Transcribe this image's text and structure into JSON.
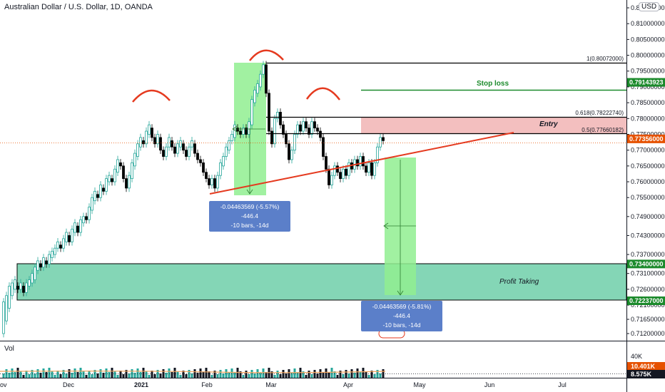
{
  "header": {
    "title": "Australian Dollar / U.S. Dollar, 1D, OANDA",
    "currency": "USD",
    "volume_label": "Vol"
  },
  "colors": {
    "up": "#26a69a",
    "down": "#000000",
    "zone_green": "#6ecfa9",
    "highlight_green": "#90ee90",
    "entry_zone": "#f2b8b8",
    "trend_line": "#e53a1f",
    "stop_loss": "#1b8a2b",
    "price_tag": "#e65100",
    "arc": "#e53a1f",
    "info_box": "#5b7fc9"
  },
  "annotations": {
    "stop_loss": "Stop loss",
    "entry": "Entry",
    "profit_taking": "Profit Taking",
    "fib_1": "1(0.80072000)",
    "fib_0618": "0.618(0.78222740)",
    "fib_05": "0.5(0.77660182)",
    "measure_left_line1": "-0.04463569 (-5.57%) -446.4",
    "measure_left_line2": "-10 bars, -14d",
    "measure_right_line1": "-0.04463569 (-5.81%) -446.4",
    "measure_right_line2": "-10 bars, -14d"
  },
  "chart_data": {
    "type": "candlestick",
    "title": "Australian Dollar / U.S. Dollar, 1D, OANDA",
    "y_axis": {
      "ylim": [
        0.708,
        0.82
      ],
      "ticks": [
        "0.81500000",
        "0.81000000",
        "0.80500000",
        "0.80000000",
        "0.79500000",
        "0.79000000",
        "0.78500000",
        "0.78000000",
        "0.77500000",
        "0.77000000",
        "0.76500000",
        "0.76000000",
        "0.75500000",
        "0.74900000",
        "0.74300000",
        "0.73700000",
        "0.73100000",
        "0.72600000",
        "0.72100000",
        "0.71650000",
        "0.71200000"
      ],
      "tick_values": [
        0.815,
        0.81,
        0.805,
        0.8,
        0.795,
        0.79,
        0.785,
        0.78,
        0.775,
        0.77,
        0.765,
        0.76,
        0.755,
        0.749,
        0.743,
        0.737,
        0.731,
        0.726,
        0.721,
        0.7165,
        0.712
      ],
      "top_partial_label": "0.8"
    },
    "x_axis": {
      "ticks": [
        "ov",
        "Dec",
        "2021",
        "Feb",
        "Mar",
        "Apr",
        "May",
        "Jun",
        "Jul"
      ]
    },
    "price_tags": [
      {
        "label": "0.79143923",
        "value": 0.79143923,
        "color": "#1b8a2b"
      },
      {
        "label": "0.77356000",
        "value": 0.77356,
        "color": "#e65100"
      },
      {
        "label": "0.73400000",
        "value": 0.734,
        "color": "#1b8a2b"
      },
      {
        "label": "0.72237000",
        "value": 0.72237,
        "color": "#1b8a2b"
      }
    ],
    "volume_axis": {
      "ticks": [
        "40K"
      ],
      "tags": [
        {
          "label": "10.401K",
          "color": "#e65100"
        },
        {
          "label": "8.575K",
          "color": "#131722"
        }
      ]
    },
    "levels": {
      "fib_1": 0.80072,
      "fib_0618": 0.7822274,
      "fib_05": 0.77660182,
      "stop_loss": 0.79143923,
      "current": 0.77356,
      "profit_top": 0.734,
      "profit_bottom": 0.72237
    }
  }
}
